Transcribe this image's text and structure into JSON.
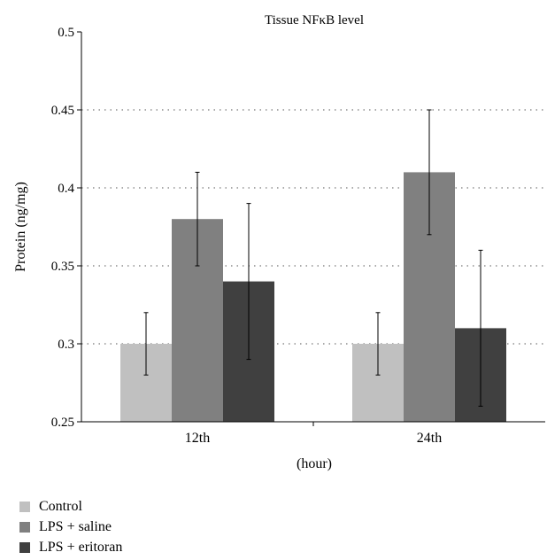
{
  "chart_data": {
    "type": "bar",
    "title": "Tissue NFκB level",
    "xlabel": "(hour)",
    "ylabel": "Protein (ng/mg)",
    "ylim": [
      0.25,
      0.5
    ],
    "yticks": [
      "0.25",
      "0.3",
      "0.35",
      "0.4",
      "0.45",
      "0.5"
    ],
    "grid": "horizontal-dotted",
    "legend_position": "bottom-left",
    "categories": [
      "12th",
      "24th"
    ],
    "series": [
      {
        "name": "Control",
        "color": "#c0c0c0",
        "values": [
          0.3,
          0.3
        ],
        "errors": [
          0.02,
          0.02
        ]
      },
      {
        "name": "LPS + saline",
        "color": "#808080",
        "values": [
          0.38,
          0.41
        ],
        "errors": [
          0.03,
          0.04
        ]
      },
      {
        "name": "LPS + eritoran",
        "color": "#404040",
        "values": [
          0.34,
          0.31
        ],
        "errors": [
          0.05,
          0.05
        ]
      }
    ]
  }
}
